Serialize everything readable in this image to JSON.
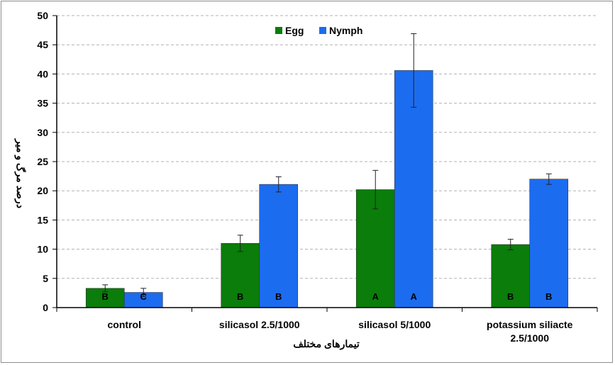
{
  "chart_data": {
    "type": "bar",
    "title": "",
    "xlabel": "تیمارهای مختلف",
    "ylabel": "درصد مرگ و میر",
    "ylim": [
      0,
      50
    ],
    "yticks": [
      0,
      5,
      10,
      15,
      20,
      25,
      30,
      35,
      40,
      45,
      50
    ],
    "categories": [
      [
        "control"
      ],
      [
        "silicasol 2.5/1000"
      ],
      [
        "silicasol 5/1000"
      ],
      [
        "potassium siliacte",
        "2.5/1000"
      ]
    ],
    "series": [
      {
        "name": "Egg",
        "color": "#0a7d0a",
        "values": [
          3.3,
          11.0,
          20.2,
          10.8
        ],
        "errors": [
          0.6,
          1.4,
          3.3,
          0.9
        ],
        "letters": [
          "B",
          "B",
          "A",
          "B"
        ]
      },
      {
        "name": "Nymph",
        "color": "#1c6cf0",
        "values": [
          2.6,
          21.1,
          40.6,
          22.0
        ],
        "errors": [
          0.7,
          1.3,
          6.3,
          0.9
        ],
        "letters": [
          "C",
          "B",
          "A",
          "B"
        ]
      }
    ],
    "grid": true,
    "legend": "top-center"
  }
}
